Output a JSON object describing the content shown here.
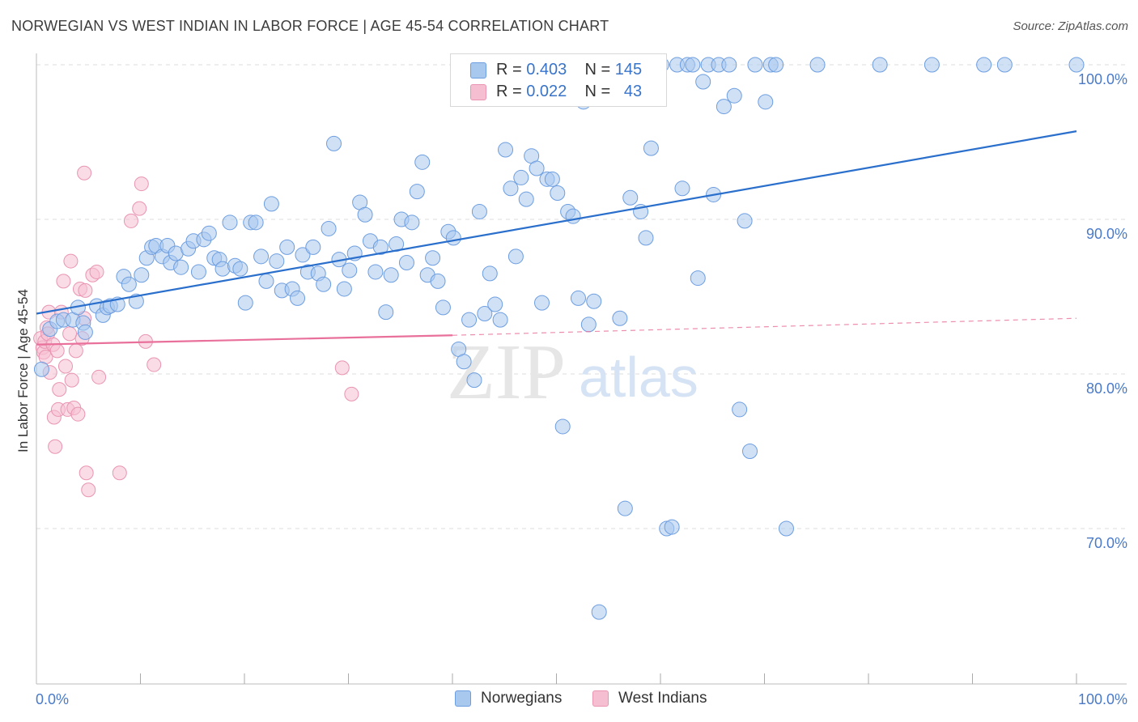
{
  "header": {
    "title": "NORWEGIAN VS WEST INDIAN IN LABOR FORCE | AGE 45-54 CORRELATION CHART",
    "source": "Source: ZipAtlas.com"
  },
  "colors": {
    "blue_fill": "#a9c8ee",
    "blue_stroke": "#6d9ee0",
    "blue_line": "#2a6fcc",
    "pink_fill": "#f6bfd1",
    "pink_stroke": "#e994b2",
    "pink_line": "#e8709a",
    "tick_text": "#4a7ac8",
    "grid": "#dddddd"
  },
  "legend": {
    "rows": [
      {
        "r_label": "R =",
        "r_value": "0.403",
        "n_label": "N =",
        "n_value": "145"
      },
      {
        "r_label": "R =",
        "r_value": "0.022",
        "n_label": "N =",
        "n_value": "43"
      }
    ]
  },
  "bottom_legend": {
    "items": [
      {
        "label": "Norwegians"
      },
      {
        "label": "West Indians"
      }
    ]
  },
  "watermark": {
    "zip": "ZIP",
    "atlas": "atlas"
  },
  "chart_data": {
    "type": "scatter",
    "title": "NORWEGIAN VS WEST INDIAN IN LABOR FORCE | AGE 45-54 CORRELATION CHART",
    "xlabel": "",
    "ylabel": "In Labor Force | Age 45-54",
    "xlim": [
      0,
      100
    ],
    "ylim": [
      60,
      101.5
    ],
    "x_tick_labels": [
      "0.0%",
      "100.0%"
    ],
    "y_ticks": [
      70,
      80,
      90,
      100
    ],
    "y_tick_labels": [
      "70.0%",
      "80.0%",
      "90.0%",
      "100.0%"
    ],
    "grid": true,
    "legend_position": "top-center",
    "series": [
      {
        "name": "Norwegians",
        "r": 0.403,
        "n": 145,
        "trend": {
          "x": [
            0,
            100
          ],
          "y": [
            83.9,
            95.7
          ]
        },
        "points": [
          [
            0.5,
            80.3
          ],
          [
            1.3,
            82.9
          ],
          [
            2.0,
            83.4
          ],
          [
            2.6,
            83.5
          ],
          [
            3.5,
            83.5
          ],
          [
            4.0,
            84.3
          ],
          [
            4.5,
            83.3
          ],
          [
            4.7,
            82.7
          ],
          [
            5.8,
            84.4
          ],
          [
            6.4,
            83.8
          ],
          [
            6.8,
            84.3
          ],
          [
            7.1,
            84.4
          ],
          [
            7.8,
            84.5
          ],
          [
            8.4,
            86.3
          ],
          [
            8.9,
            85.8
          ],
          [
            9.6,
            84.7
          ],
          [
            10.1,
            86.4
          ],
          [
            10.6,
            87.5
          ],
          [
            11.1,
            88.2
          ],
          [
            11.5,
            88.3
          ],
          [
            12.1,
            87.6
          ],
          [
            12.6,
            88.3
          ],
          [
            12.9,
            87.2
          ],
          [
            13.4,
            87.8
          ],
          [
            13.9,
            86.9
          ],
          [
            14.6,
            88.1
          ],
          [
            15.1,
            88.6
          ],
          [
            15.6,
            86.6
          ],
          [
            16.1,
            88.7
          ],
          [
            16.6,
            89.1
          ],
          [
            17.1,
            87.5
          ],
          [
            17.6,
            87.4
          ],
          [
            17.9,
            86.8
          ],
          [
            18.6,
            89.8
          ],
          [
            19.1,
            87.0
          ],
          [
            19.6,
            86.8
          ],
          [
            20.1,
            84.6
          ],
          [
            20.6,
            89.8
          ],
          [
            21.1,
            89.8
          ],
          [
            21.6,
            87.6
          ],
          [
            22.1,
            86.0
          ],
          [
            22.6,
            91.0
          ],
          [
            23.1,
            87.3
          ],
          [
            23.6,
            85.4
          ],
          [
            24.1,
            88.2
          ],
          [
            24.6,
            85.5
          ],
          [
            25.1,
            84.9
          ],
          [
            25.6,
            87.7
          ],
          [
            26.1,
            86.6
          ],
          [
            26.6,
            88.2
          ],
          [
            27.1,
            86.5
          ],
          [
            27.6,
            85.8
          ],
          [
            28.1,
            89.4
          ],
          [
            28.6,
            94.9
          ],
          [
            29.1,
            87.4
          ],
          [
            29.6,
            85.5
          ],
          [
            30.1,
            86.7
          ],
          [
            30.6,
            87.8
          ],
          [
            31.1,
            91.1
          ],
          [
            31.6,
            90.3
          ],
          [
            32.1,
            88.6
          ],
          [
            32.6,
            86.6
          ],
          [
            33.1,
            88.2
          ],
          [
            33.6,
            84.0
          ],
          [
            34.1,
            86.4
          ],
          [
            34.6,
            88.4
          ],
          [
            35.1,
            90.0
          ],
          [
            35.6,
            87.2
          ],
          [
            36.1,
            89.8
          ],
          [
            36.6,
            91.8
          ],
          [
            37.1,
            93.7
          ],
          [
            37.6,
            86.4
          ],
          [
            38.1,
            87.5
          ],
          [
            38.6,
            86.0
          ],
          [
            39.1,
            84.3
          ],
          [
            39.6,
            89.2
          ],
          [
            40.1,
            88.8
          ],
          [
            40.6,
            81.6
          ],
          [
            41.1,
            80.8
          ],
          [
            41.6,
            83.5
          ],
          [
            42.1,
            79.6
          ],
          [
            42.6,
            90.5
          ],
          [
            43.1,
            83.9
          ],
          [
            43.6,
            86.5
          ],
          [
            44.1,
            84.5
          ],
          [
            44.6,
            83.5
          ],
          [
            45.1,
            94.5
          ],
          [
            45.6,
            92.0
          ],
          [
            46.1,
            87.6
          ],
          [
            46.6,
            92.7
          ],
          [
            47.1,
            91.3
          ],
          [
            47.6,
            94.1
          ],
          [
            48.1,
            93.3
          ],
          [
            48.6,
            84.6
          ],
          [
            49.1,
            92.6
          ],
          [
            49.6,
            92.6
          ],
          [
            50.1,
            91.7
          ],
          [
            50.6,
            76.6
          ],
          [
            51.1,
            90.5
          ],
          [
            51.6,
            90.2
          ],
          [
            52.1,
            84.9
          ],
          [
            52.6,
            97.6
          ],
          [
            53.1,
            83.2
          ],
          [
            53.6,
            84.7
          ],
          [
            54.1,
            64.6
          ],
          [
            55.1,
            97.8
          ],
          [
            56.1,
            83.6
          ],
          [
            56.6,
            71.3
          ],
          [
            57.1,
            91.4
          ],
          [
            57.6,
            99.0
          ],
          [
            58.1,
            90.5
          ],
          [
            58.6,
            88.8
          ],
          [
            59.1,
            94.6
          ],
          [
            59.6,
            100.0
          ],
          [
            60.1,
            100.0
          ],
          [
            60.6,
            70.0
          ],
          [
            61.1,
            70.1
          ],
          [
            61.6,
            100.0
          ],
          [
            62.1,
            92.0
          ],
          [
            62.6,
            100.0
          ],
          [
            63.1,
            100.0
          ],
          [
            63.6,
            86.2
          ],
          [
            64.1,
            98.9
          ],
          [
            64.6,
            100.0
          ],
          [
            65.1,
            91.6
          ],
          [
            65.6,
            100.0
          ],
          [
            66.1,
            97.3
          ],
          [
            66.6,
            100.0
          ],
          [
            67.1,
            98.0
          ],
          [
            67.6,
            77.7
          ],
          [
            68.1,
            89.9
          ],
          [
            68.6,
            75.0
          ],
          [
            69.1,
            100.0
          ],
          [
            70.1,
            97.6
          ],
          [
            70.6,
            100.0
          ],
          [
            71.1,
            100.0
          ],
          [
            72.1,
            70.0
          ],
          [
            75.1,
            100.0
          ],
          [
            81.1,
            100.0
          ],
          [
            86.1,
            100.0
          ],
          [
            91.1,
            100.0
          ],
          [
            93.1,
            100.0
          ],
          [
            100.0,
            100.0
          ]
        ]
      },
      {
        "name": "West Indians",
        "r": 0.022,
        "n": 43,
        "trend": {
          "x": [
            0,
            40
          ],
          "y": [
            81.9,
            82.5
          ]
        },
        "trend_dashed": {
          "x": [
            40,
            100
          ],
          "y": [
            82.5,
            83.6
          ]
        },
        "points": [
          [
            0.4,
            82.3
          ],
          [
            0.6,
            81.7
          ],
          [
            0.7,
            81.4
          ],
          [
            0.8,
            82.1
          ],
          [
            0.9,
            81.1
          ],
          [
            1.0,
            83.0
          ],
          [
            1.1,
            82.6
          ],
          [
            1.2,
            84.0
          ],
          [
            1.3,
            80.1
          ],
          [
            1.6,
            81.9
          ],
          [
            1.7,
            77.2
          ],
          [
            1.8,
            75.3
          ],
          [
            2.0,
            81.5
          ],
          [
            2.1,
            77.7
          ],
          [
            2.2,
            79.0
          ],
          [
            2.4,
            84.0
          ],
          [
            2.6,
            86.0
          ],
          [
            2.8,
            80.5
          ],
          [
            3.0,
            77.7
          ],
          [
            3.2,
            82.6
          ],
          [
            3.3,
            87.3
          ],
          [
            3.4,
            79.6
          ],
          [
            3.6,
            77.8
          ],
          [
            3.8,
            81.5
          ],
          [
            4.0,
            77.4
          ],
          [
            4.2,
            85.5
          ],
          [
            4.4,
            82.3
          ],
          [
            4.6,
            83.6
          ],
          [
            4.7,
            85.4
          ],
          [
            4.6,
            93.0
          ],
          [
            4.8,
            73.6
          ],
          [
            5.0,
            72.5
          ],
          [
            5.4,
            86.4
          ],
          [
            5.8,
            86.6
          ],
          [
            6.0,
            79.8
          ],
          [
            8.0,
            73.6
          ],
          [
            9.1,
            89.9
          ],
          [
            9.9,
            90.7
          ],
          [
            10.1,
            92.3
          ],
          [
            10.5,
            82.1
          ],
          [
            11.3,
            80.6
          ],
          [
            29.4,
            80.4
          ],
          [
            30.3,
            78.7
          ]
        ]
      }
    ]
  }
}
